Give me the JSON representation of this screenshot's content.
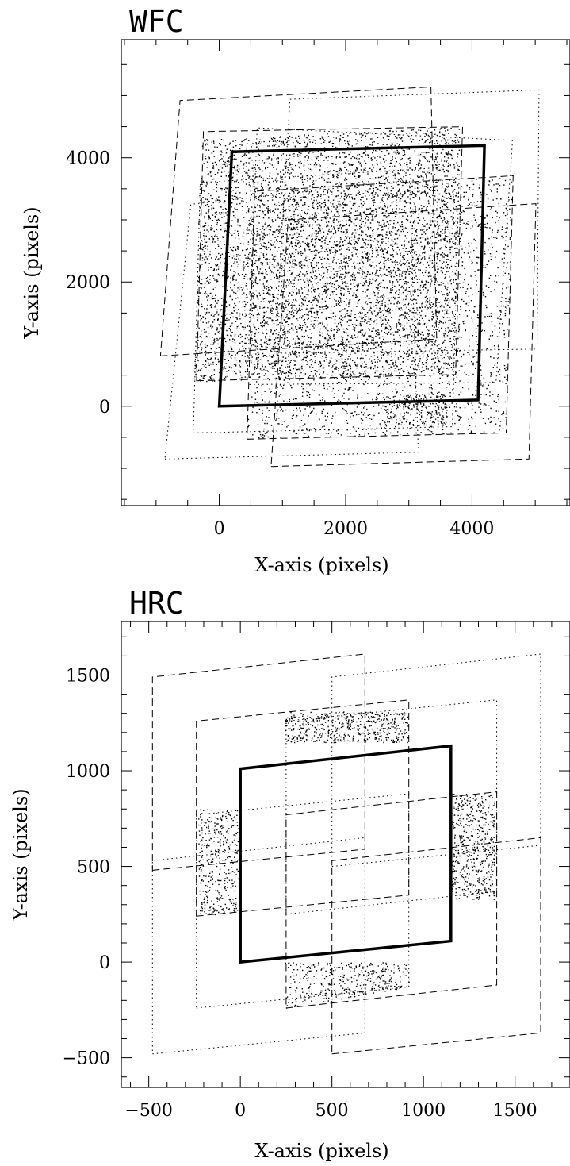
{
  "chart_data": [
    {
      "type": "scatter",
      "title": "WFC",
      "xlabel": "X-axis (pixels)",
      "ylabel": "Y-axis (pixels)",
      "xlim": [
        -1550,
        5550
      ],
      "ylim": [
        -1600,
        5900
      ],
      "xticks": [
        0,
        2000,
        4000
      ],
      "yticks": [
        0,
        2000,
        4000
      ],
      "grid": false,
      "reference_frame": [
        [
          0,
          0
        ],
        [
          4096,
          100
        ],
        [
          4196,
          4196
        ],
        [
          200,
          4096
        ]
      ],
      "dither_frames": [
        {
          "style": "dashed",
          "corners": [
            [
              -930,
              810
            ],
            [
              3440,
              1080
            ],
            [
              3350,
              5140
            ],
            [
              -620,
              4920
            ]
          ]
        },
        {
          "style": "dotted",
          "corners": [
            [
              -860,
              -850
            ],
            [
              3150,
              -740
            ],
            [
              3010,
              3640
            ],
            [
              -450,
              3250
            ]
          ]
        },
        {
          "style": "dashed",
          "corners": [
            [
              820,
              -970
            ],
            [
              4900,
              -850
            ],
            [
              5010,
              3260
            ],
            [
              1090,
              3000
            ]
          ]
        },
        {
          "style": "dotted",
          "corners": [
            [
              1120,
              4940
            ],
            [
              5060,
              5090
            ],
            [
              5030,
              920
            ],
            [
              880,
              850
            ]
          ]
        },
        {
          "style": "dashed",
          "corners": [
            [
              440,
              -530
            ],
            [
              4540,
              -430
            ],
            [
              4650,
              3710
            ],
            [
              560,
              3460
            ]
          ]
        },
        {
          "style": "dotted",
          "corners": [
            [
              -410,
              -430
            ],
            [
              3690,
              -330
            ],
            [
              3800,
              3860
            ],
            [
              -300,
              3600
            ]
          ]
        },
        {
          "style": "dashed",
          "corners": [
            [
              -360,
              410
            ],
            [
              3740,
              510
            ],
            [
              3850,
              4500
            ],
            [
              -250,
              4420
            ]
          ]
        },
        {
          "style": "dotted",
          "corners": [
            [
              4640,
              4280
            ],
            [
              600,
              4480
            ],
            [
              440,
              350
            ],
            [
              4380,
              380
            ]
          ]
        }
      ],
      "point_density_regions": [
        {
          "corners": [
            [
              -400,
              400
            ],
            [
              3700,
              500
            ],
            [
              3800,
              4500
            ],
            [
              -300,
              4300
            ]
          ]
        },
        {
          "corners": [
            [
              440,
              -520
            ],
            [
              4540,
              -420
            ],
            [
              4640,
              3700
            ],
            [
              560,
              3450
            ]
          ]
        },
        {
          "corners": [
            [
              2600,
              -300
            ],
            [
              3600,
              -300
            ],
            [
              3600,
              200
            ],
            [
              2600,
              200
            ]
          ]
        }
      ]
    },
    {
      "type": "scatter",
      "title": "HRC",
      "xlabel": "X-axis (pixels)",
      "ylabel": "Y-axis (pixels)",
      "xlim": [
        -650,
        1800
      ],
      "ylim": [
        -655,
        1780
      ],
      "xticks": [
        -500,
        0,
        500,
        1000,
        1500
      ],
      "yticks": [
        -500,
        0,
        500,
        1000,
        1500
      ],
      "grid": false,
      "reference_frame": [
        [
          0,
          0
        ],
        [
          1150,
          110
        ],
        [
          1150,
          1130
        ],
        [
          0,
          1010
        ]
      ],
      "dither_frames": [
        {
          "style": "dashed",
          "corners": [
            [
              -480,
              480
            ],
            [
              680,
              590
            ],
            [
              680,
              1610
            ],
            [
              -480,
              1490
            ]
          ]
        },
        {
          "style": "dotted",
          "corners": [
            [
              -480,
              -480
            ],
            [
              680,
              -370
            ],
            [
              680,
              650
            ],
            [
              -480,
              530
            ]
          ]
        },
        {
          "style": "dashed",
          "corners": [
            [
              500,
              -480
            ],
            [
              1640,
              -370
            ],
            [
              1640,
              650
            ],
            [
              500,
              530
            ]
          ]
        },
        {
          "style": "dotted",
          "corners": [
            [
              500,
              500
            ],
            [
              1640,
              610
            ],
            [
              1640,
              1610
            ],
            [
              500,
              1490
            ]
          ]
        },
        {
          "style": "dashed",
          "corners": [
            [
              250,
              -240
            ],
            [
              1400,
              -120
            ],
            [
              1400,
              890
            ],
            [
              250,
              770
            ]
          ]
        },
        {
          "style": "dotted",
          "corners": [
            [
              -240,
              -240
            ],
            [
              920,
              -130
            ],
            [
              920,
              880
            ],
            [
              -240,
              770
            ]
          ]
        },
        {
          "style": "dashed",
          "corners": [
            [
              -240,
              240
            ],
            [
              920,
              350
            ],
            [
              920,
              1370
            ],
            [
              -240,
              1260
            ]
          ]
        },
        {
          "style": "dotted",
          "corners": [
            [
              250,
              250
            ],
            [
              1400,
              370
            ],
            [
              1400,
              1370
            ],
            [
              250,
              1260
            ]
          ]
        }
      ],
      "point_density_regions": [
        {
          "corners": [
            [
              -230,
              250
            ],
            [
              0,
              250
            ],
            [
              0,
              800
            ],
            [
              -230,
              800
            ]
          ]
        },
        {
          "corners": [
            [
              240,
              1150
            ],
            [
              920,
              1150
            ],
            [
              920,
              1310
            ],
            [
              240,
              1310
            ]
          ]
        },
        {
          "corners": [
            [
              240,
              -240
            ],
            [
              920,
              -130
            ],
            [
              920,
              0
            ],
            [
              240,
              0
            ]
          ]
        },
        {
          "corners": [
            [
              1150,
              330
            ],
            [
              1390,
              330
            ],
            [
              1390,
              880
            ],
            [
              1150,
              880
            ]
          ]
        }
      ]
    }
  ]
}
